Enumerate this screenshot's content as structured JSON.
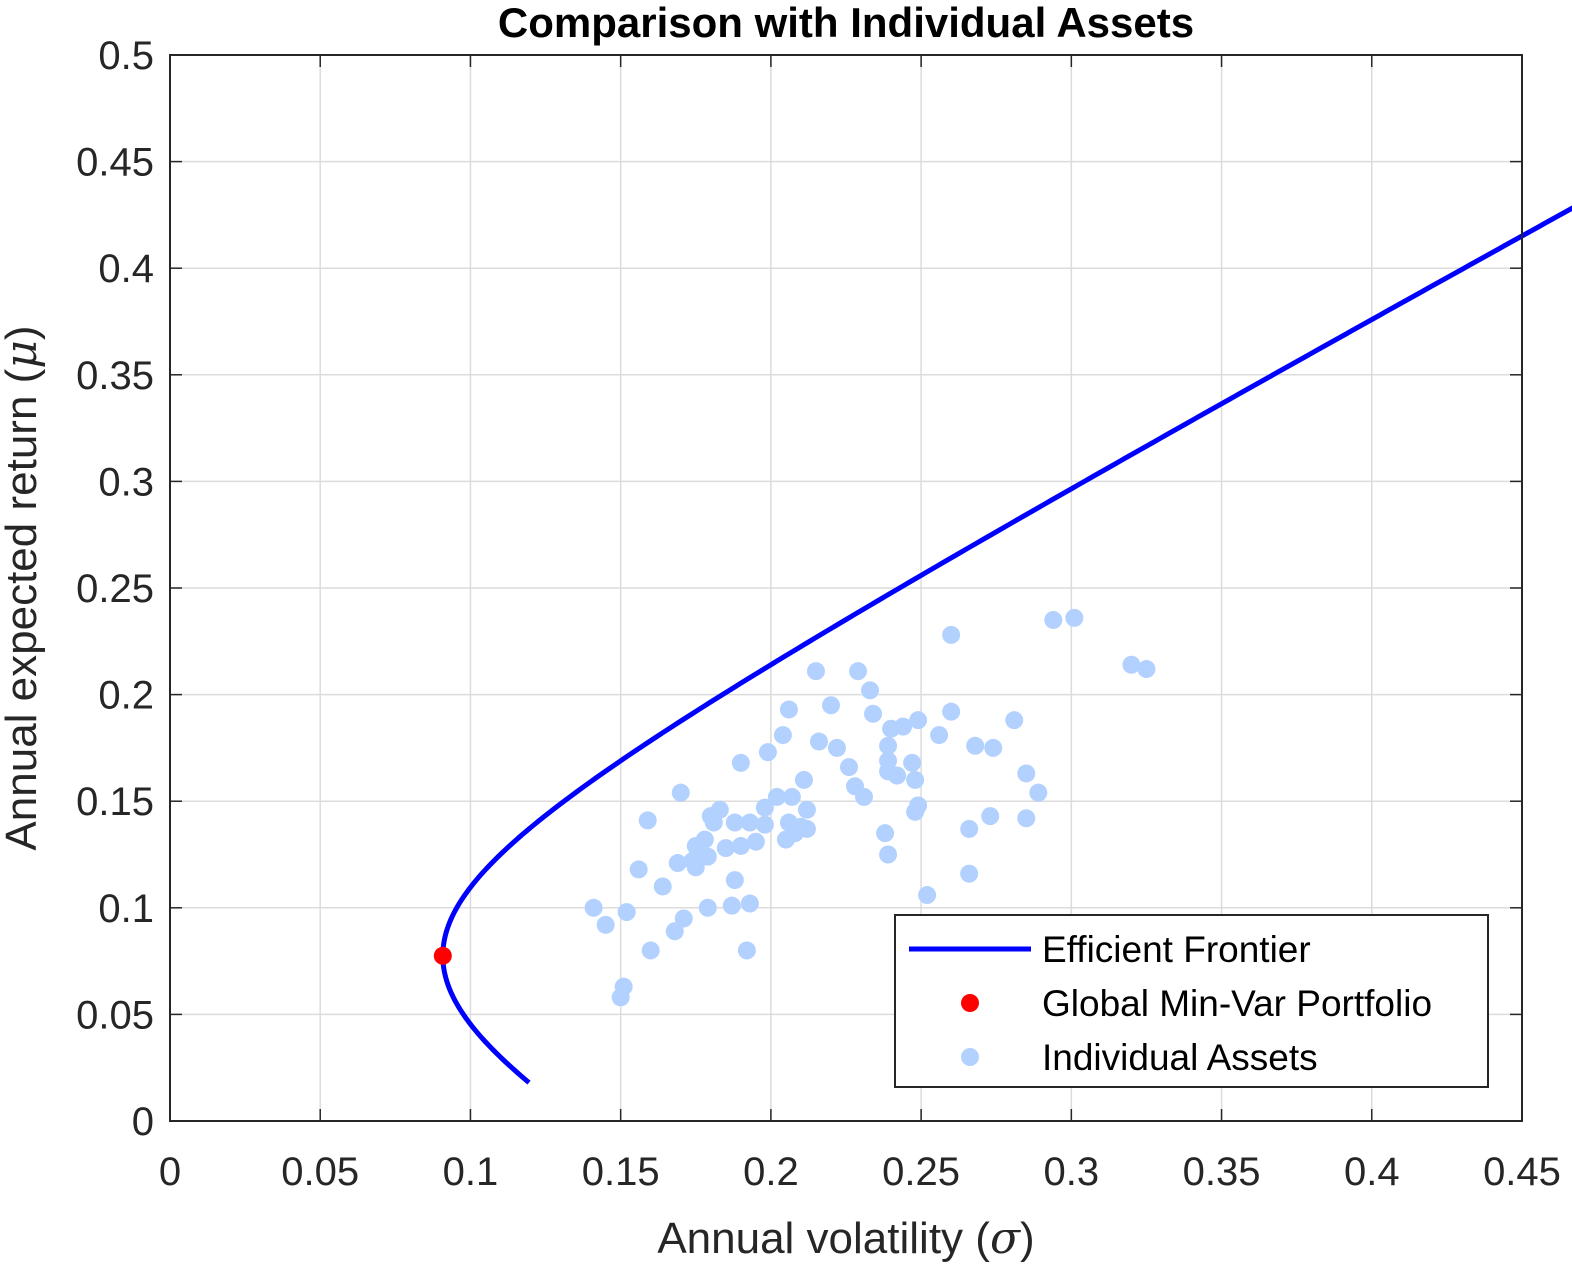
{
  "chart_data": {
    "type": "scatter",
    "title": "Comparison with Individual Assets",
    "xlabel": "Annual volatility",
    "xlabel_symbol": "σ",
    "ylabel": "Annual expected return",
    "ylabel_symbol": "μ",
    "xlim": [
      0,
      0.45
    ],
    "ylim": [
      0,
      0.5
    ],
    "xticks": [
      0,
      0.05,
      0.1,
      0.15,
      0.2,
      0.25,
      0.3,
      0.35,
      0.4,
      0.45
    ],
    "yticks": [
      0,
      0.05,
      0.1,
      0.15,
      0.2,
      0.25,
      0.3,
      0.35,
      0.4,
      0.45,
      0.5
    ],
    "xtick_labels": [
      "0",
      "0.05",
      "0.1",
      "0.15",
      "0.2",
      "0.25",
      "0.3",
      "0.35",
      "0.4",
      "0.45"
    ],
    "ytick_labels": [
      "0",
      "0.05",
      "0.1",
      "0.15",
      "0.2",
      "0.25",
      "0.3",
      "0.35",
      "0.4",
      "0.45",
      "0.5"
    ],
    "grid": true,
    "legend_position": "bottom-right",
    "series": [
      {
        "name": "Efficient Frontier",
        "kind": "line",
        "color": "#0000ff",
        "min_var_point": [
          0.0908,
          0.0775
        ],
        "a": 0.0908,
        "b": 0.766,
        "y_range": [
          0.018,
          0.478
        ]
      },
      {
        "name": "Global Min-Var Portfolio",
        "kind": "point",
        "color": "#ff0000",
        "points": [
          [
            0.0908,
            0.0775
          ]
        ]
      },
      {
        "name": "Individual Assets",
        "kind": "scatter",
        "color": "#b3d1ff",
        "points": [
          [
            0.141,
            0.1
          ],
          [
            0.145,
            0.092
          ],
          [
            0.15,
            0.058
          ],
          [
            0.151,
            0.063
          ],
          [
            0.152,
            0.098
          ],
          [
            0.156,
            0.118
          ],
          [
            0.159,
            0.141
          ],
          [
            0.16,
            0.08
          ],
          [
            0.164,
            0.11
          ],
          [
            0.168,
            0.089
          ],
          [
            0.169,
            0.121
          ],
          [
            0.17,
            0.154
          ],
          [
            0.171,
            0.095
          ],
          [
            0.174,
            0.122
          ],
          [
            0.175,
            0.129
          ],
          [
            0.175,
            0.119
          ],
          [
            0.178,
            0.132
          ],
          [
            0.179,
            0.124
          ],
          [
            0.179,
            0.1
          ],
          [
            0.18,
            0.143
          ],
          [
            0.181,
            0.14
          ],
          [
            0.183,
            0.146
          ],
          [
            0.185,
            0.128
          ],
          [
            0.187,
            0.101
          ],
          [
            0.188,
            0.14
          ],
          [
            0.188,
            0.113
          ],
          [
            0.19,
            0.129
          ],
          [
            0.19,
            0.168
          ],
          [
            0.192,
            0.08
          ],
          [
            0.193,
            0.14
          ],
          [
            0.193,
            0.102
          ],
          [
            0.195,
            0.131
          ],
          [
            0.198,
            0.147
          ],
          [
            0.198,
            0.139
          ],
          [
            0.199,
            0.173
          ],
          [
            0.202,
            0.152
          ],
          [
            0.204,
            0.181
          ],
          [
            0.205,
            0.132
          ],
          [
            0.206,
            0.193
          ],
          [
            0.206,
            0.14
          ],
          [
            0.207,
            0.152
          ],
          [
            0.208,
            0.135
          ],
          [
            0.21,
            0.138
          ],
          [
            0.211,
            0.16
          ],
          [
            0.212,
            0.146
          ],
          [
            0.212,
            0.137
          ],
          [
            0.215,
            0.211
          ],
          [
            0.216,
            0.178
          ],
          [
            0.22,
            0.195
          ],
          [
            0.222,
            0.175
          ],
          [
            0.226,
            0.166
          ],
          [
            0.228,
            0.157
          ],
          [
            0.229,
            0.211
          ],
          [
            0.231,
            0.152
          ],
          [
            0.233,
            0.202
          ],
          [
            0.234,
            0.191
          ],
          [
            0.238,
            0.135
          ],
          [
            0.239,
            0.169
          ],
          [
            0.239,
            0.164
          ],
          [
            0.239,
            0.176
          ],
          [
            0.239,
            0.125
          ],
          [
            0.24,
            0.184
          ],
          [
            0.242,
            0.162
          ],
          [
            0.244,
            0.185
          ],
          [
            0.247,
            0.168
          ],
          [
            0.248,
            0.16
          ],
          [
            0.248,
            0.145
          ],
          [
            0.249,
            0.148
          ],
          [
            0.249,
            0.188
          ],
          [
            0.252,
            0.106
          ],
          [
            0.256,
            0.181
          ],
          [
            0.26,
            0.192
          ],
          [
            0.26,
            0.228
          ],
          [
            0.266,
            0.116
          ],
          [
            0.266,
            0.137
          ],
          [
            0.268,
            0.176
          ],
          [
            0.273,
            0.143
          ],
          [
            0.274,
            0.175
          ],
          [
            0.281,
            0.188
          ],
          [
            0.285,
            0.163
          ],
          [
            0.285,
            0.142
          ],
          [
            0.289,
            0.154
          ],
          [
            0.294,
            0.235
          ],
          [
            0.301,
            0.236
          ],
          [
            0.32,
            0.214
          ],
          [
            0.325,
            0.212
          ]
        ]
      }
    ]
  }
}
